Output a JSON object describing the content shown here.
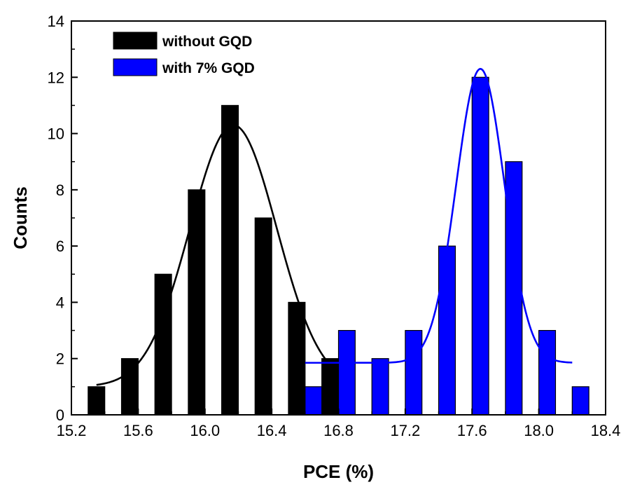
{
  "chart_data": {
    "type": "bar",
    "xlabel": "PCE (%)",
    "ylabel": "Counts",
    "xlim": [
      15.2,
      18.4
    ],
    "ylim": [
      0,
      14
    ],
    "x_ticks": [
      15.2,
      15.6,
      16.0,
      16.4,
      16.8,
      17.2,
      17.6,
      18.0,
      18.4
    ],
    "x_tick_labels": [
      "15.2",
      "15.6",
      "16.0",
      "16.4",
      "16.8",
      "17.2",
      "17.6",
      "18.0",
      "18.4"
    ],
    "y_ticks": [
      0,
      2,
      4,
      6,
      8,
      10,
      12,
      14
    ],
    "y_tick_labels": [
      "0",
      "2",
      "4",
      "6",
      "8",
      "10",
      "12",
      "14"
    ],
    "bar_width": 0.1,
    "series": [
      {
        "name": "without GQD",
        "color": "#000000",
        "x": [
          15.35,
          15.55,
          15.75,
          15.95,
          16.15,
          16.35,
          16.55,
          16.75
        ],
        "values": [
          1,
          2,
          5,
          8,
          11,
          7,
          4,
          2
        ],
        "fit": {
          "type": "gaussian",
          "baseline": 1.0,
          "amplitude": 9.3,
          "center": 16.17,
          "sigma": 0.26,
          "x_range": [
            15.35,
            16.75
          ]
        }
      },
      {
        "name": "with 7% GQD",
        "color": "#0000ff",
        "x": [
          16.65,
          16.85,
          17.05,
          17.25,
          17.45,
          17.65,
          17.85,
          18.05,
          18.25
        ],
        "values": [
          1,
          3,
          2,
          3,
          6,
          12,
          9,
          3,
          1
        ],
        "fit": {
          "type": "gaussian",
          "baseline": 1.85,
          "amplitude": 10.45,
          "center": 17.65,
          "sigma": 0.145,
          "x_range": [
            16.6,
            18.2
          ]
        }
      }
    ],
    "legend": {
      "position": "top-left",
      "entries": [
        "without GQD",
        "with 7% GQD"
      ]
    }
  }
}
